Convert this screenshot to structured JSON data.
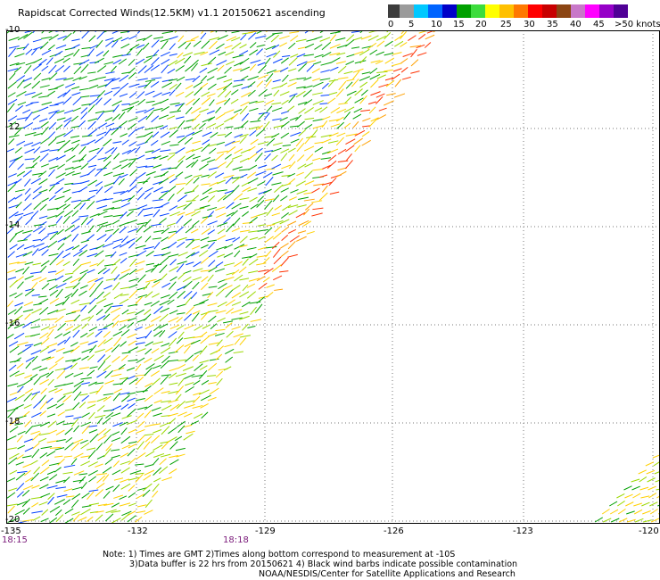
{
  "header": {
    "title": "Rapidscat Corrected Winds(12.5KM) v1.1 20150621 ascending"
  },
  "legend": {
    "colors": [
      "#3c3c3c",
      "#9b9b9b",
      "#00c8ff",
      "#0064ff",
      "#0000c8",
      "#00a000",
      "#3cdc3c",
      "#ffff00",
      "#ffc000",
      "#ff7800",
      "#ff0000",
      "#c80000",
      "#8b4513",
      "#c878c8",
      "#ff00ff",
      "#9600c8",
      "#500096"
    ],
    "labels": [
      "0",
      "5",
      "10",
      "15",
      "20",
      "25",
      "30",
      "35",
      "40",
      "45",
      ">50 knots"
    ]
  },
  "axes": {
    "x_ticks": [
      "-135",
      "-132",
      "-129",
      "-126",
      "-123",
      "-120"
    ],
    "y_ticks": [
      "-10",
      "-12",
      "-14",
      "-16",
      "-18",
      "-20"
    ]
  },
  "times": [
    "18:15",
    "18:18"
  ],
  "notes": [
    "Note: 1) Times are GMT 2)Times along bottom correspond to measurement at -10S",
    "3)Data buffer is 22 hrs from 20150621 4) Black wind barbs indicate possible contamination",
    "NOAA/NESDIS/Center for Satellite Applications and Research"
  ]
}
